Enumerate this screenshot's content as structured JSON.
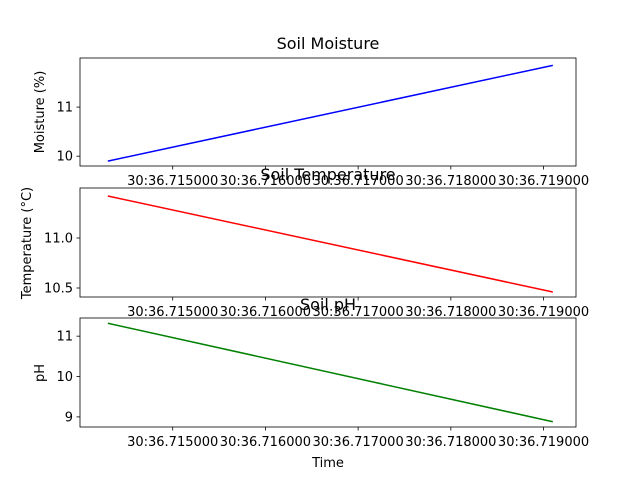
{
  "chart_data": [
    {
      "type": "line",
      "title": "Soil Moisture",
      "xlabel": "",
      "ylabel": "Moisture (%)",
      "x": [
        "30:36.714300",
        "30:36.719100"
      ],
      "series": [
        {
          "values": [
            9.9,
            11.85
          ],
          "color": "#0000ff"
        }
      ],
      "xlim": [
        "30:36.714000",
        "30:36.719350"
      ],
      "ylim": [
        9.8,
        12.0
      ],
      "xticks": [
        "30:36.715000",
        "30:36.716000",
        "30:36.717000",
        "30:36.718000",
        "30:36.719000"
      ],
      "yticks": [
        10,
        11
      ],
      "grid": false
    },
    {
      "type": "line",
      "title": "Soil Temperature",
      "xlabel": "",
      "ylabel": "Temperature (°C)",
      "x": [
        "30:36.714300",
        "30:36.719100"
      ],
      "series": [
        {
          "values": [
            11.42,
            10.46
          ],
          "color": "#ff0000"
        }
      ],
      "xlim": [
        "30:36.714000",
        "30:36.719350"
      ],
      "ylim": [
        10.41,
        11.5
      ],
      "xticks": [
        "30:36.715000",
        "30:36.716000",
        "30:36.717000",
        "30:36.718000",
        "30:36.719000"
      ],
      "yticks": [
        "10.5",
        "11.0"
      ],
      "grid": false
    },
    {
      "type": "line",
      "title": "Soil pH",
      "xlabel": "Time",
      "ylabel": "pH",
      "x": [
        "30:36.714300",
        "30:36.719100"
      ],
      "series": [
        {
          "values": [
            11.32,
            8.88
          ],
          "color": "#008000"
        }
      ],
      "xlim": [
        "30:36.714000",
        "30:36.719350"
      ],
      "ylim": [
        8.75,
        11.45
      ],
      "xticks": [
        "30:36.715000",
        "30:36.716000",
        "30:36.717000",
        "30:36.718000",
        "30:36.719000"
      ],
      "yticks": [
        9,
        10,
        11
      ],
      "grid": false
    }
  ]
}
